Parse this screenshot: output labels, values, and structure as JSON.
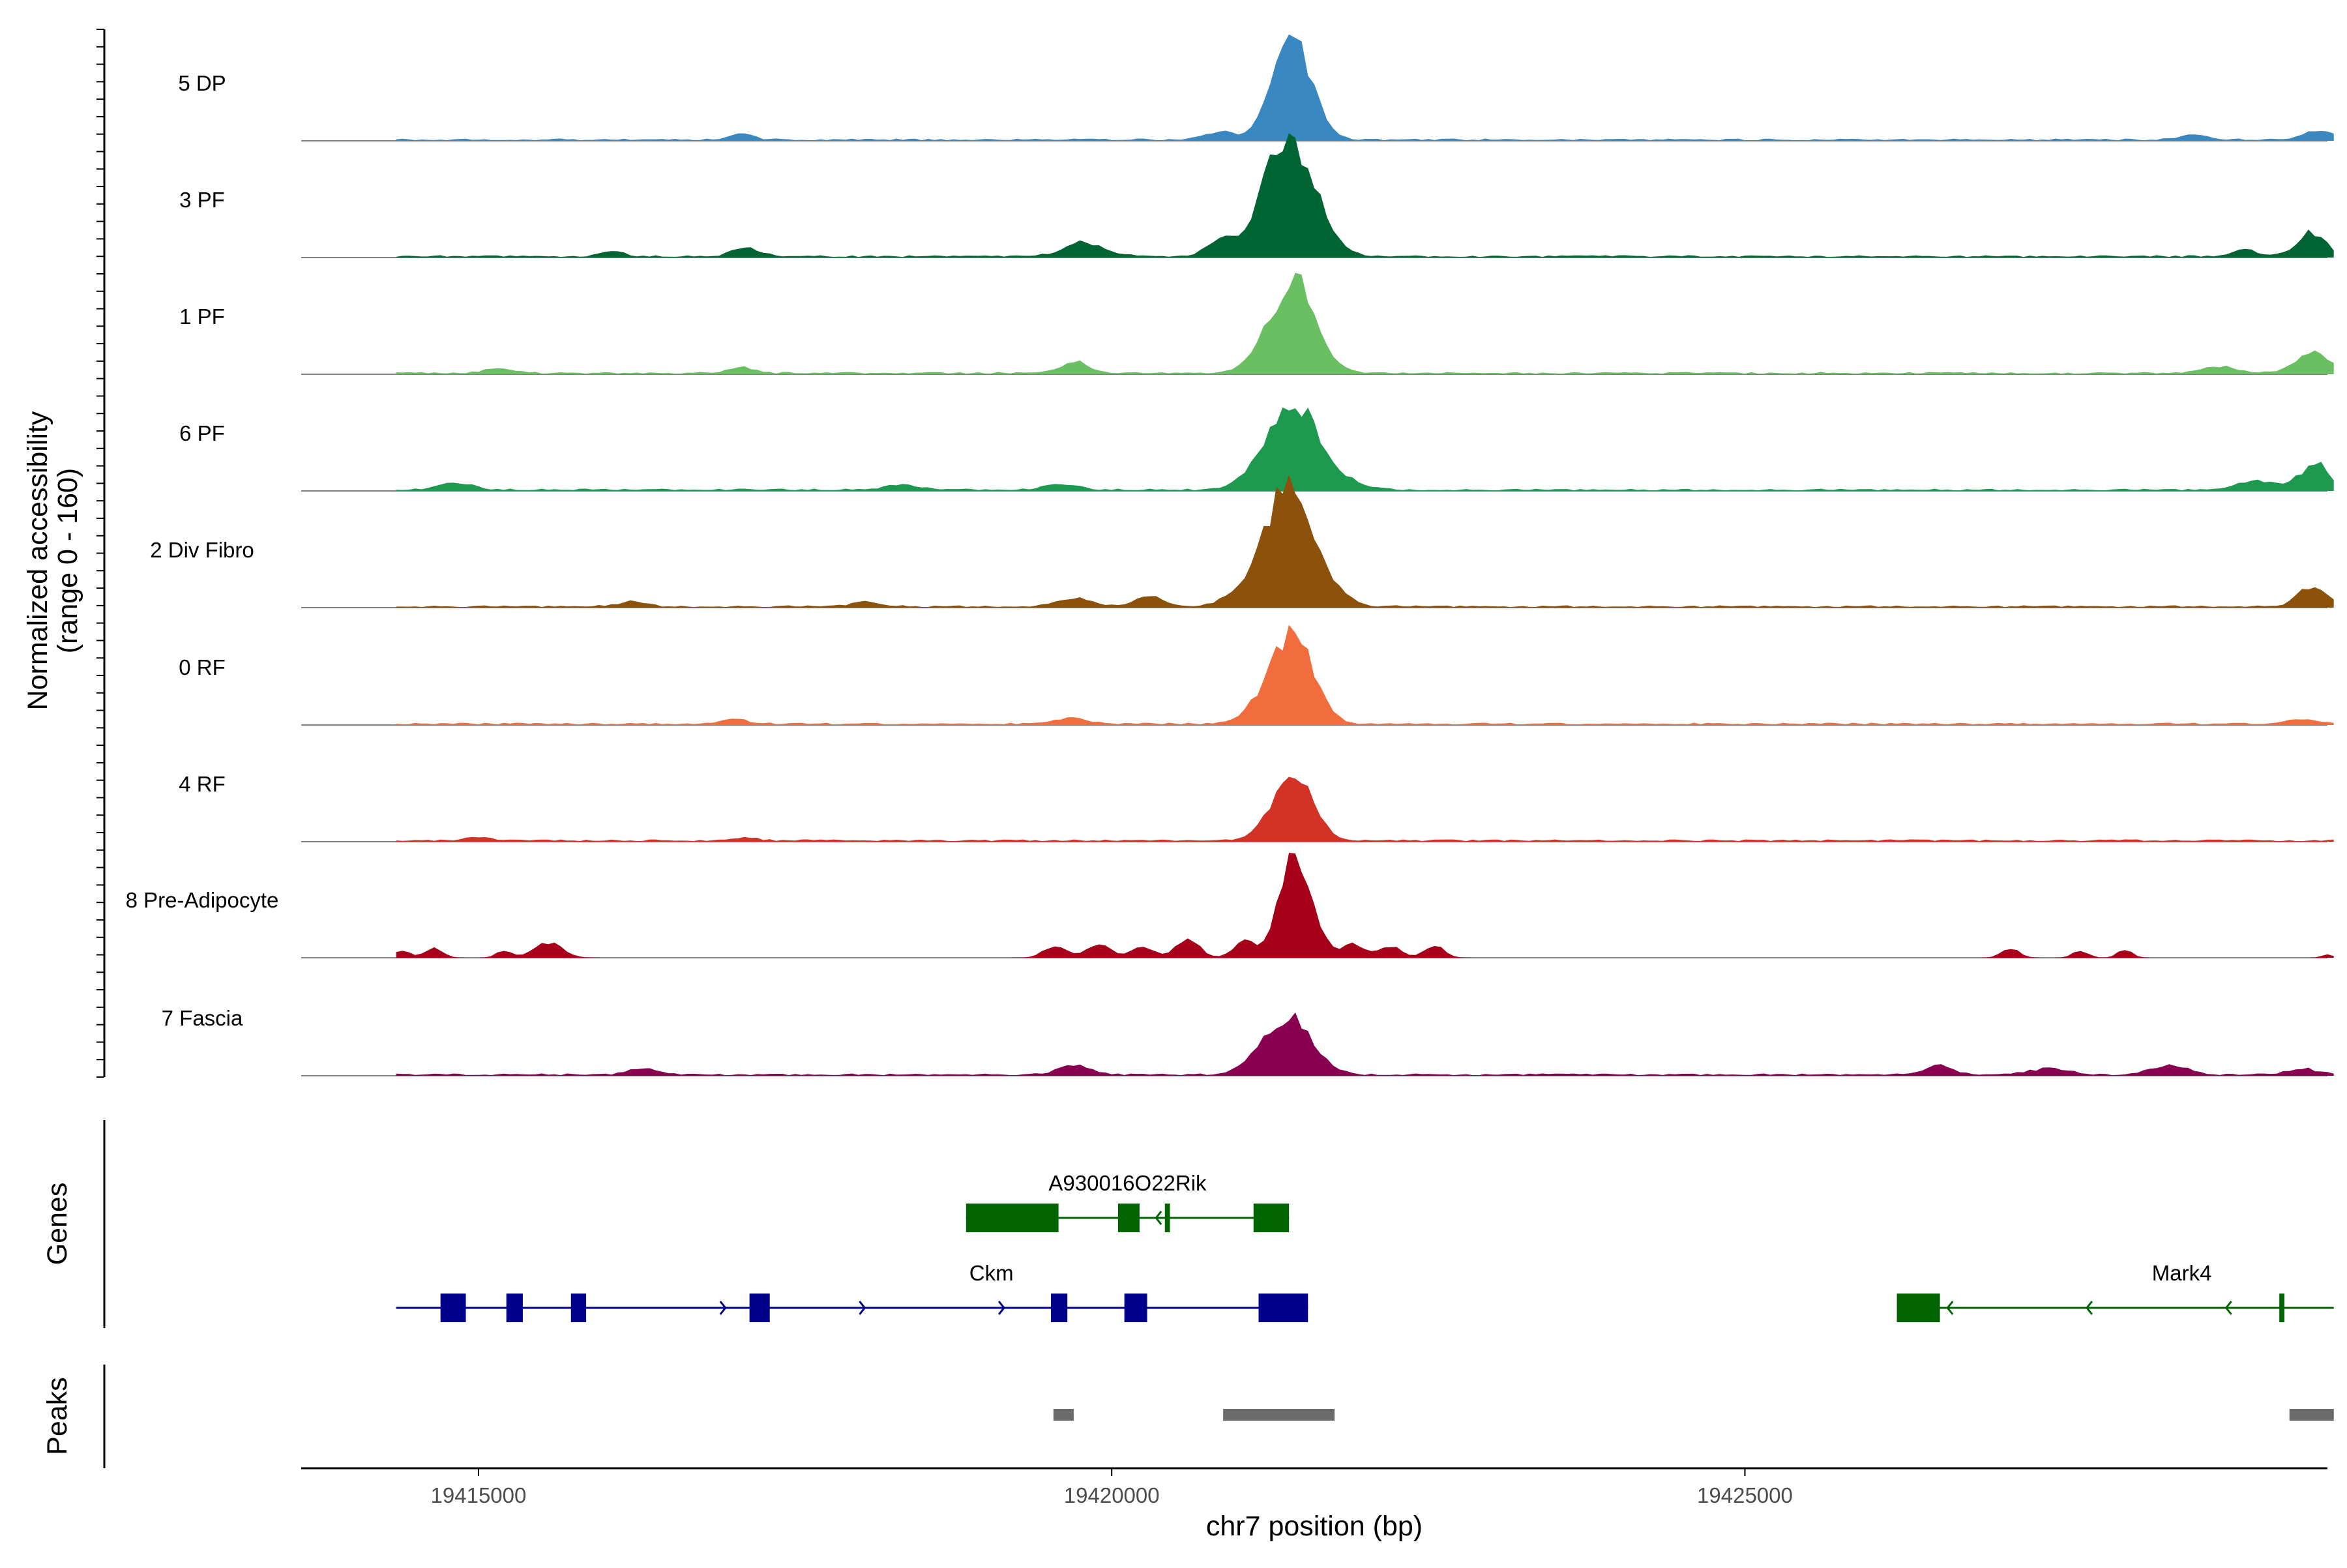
{
  "chart_data": {
    "type": "area",
    "title": "",
    "ylabel_line1": "Normalized accessibility",
    "ylabel_line2": "(range 0 - 160)",
    "ylim": [
      0,
      160
    ],
    "xlabel": "chr7 position (bp)",
    "xlim": [
      19413600,
      19429600
    ],
    "x_ticks": [
      19415000,
      19420000,
      19425000
    ],
    "x_tick_labels": [
      "19415000",
      "19420000",
      "19425000"
    ],
    "track_labels": {
      "genes": "Genes",
      "peaks": "Peaks"
    },
    "bin_width": 50,
    "background_level": 2,
    "series": [
      {
        "name": "5 DP",
        "color": "#3a88c2",
        "region_start": 19414350,
        "region_end": 19429650,
        "peaks": [
          {
            "center": 19421430,
            "height": 98,
            "width": 150
          },
          {
            "center": 19421340,
            "height": 22,
            "width": 120
          },
          {
            "center": 19420850,
            "height": 8,
            "width": 110
          },
          {
            "center": 19417080,
            "height": 7,
            "width": 90
          },
          {
            "center": 19429530,
            "height": 10,
            "width": 110
          },
          {
            "center": 19428550,
            "height": 5,
            "width": 100
          }
        ]
      },
      {
        "name": "3 PF",
        "color": "#006532",
        "region_start": 19414350,
        "region_end": 19429650,
        "peaks": [
          {
            "center": 19421470,
            "height": 92,
            "width": 180
          },
          {
            "center": 19421270,
            "height": 55,
            "width": 140
          },
          {
            "center": 19420870,
            "height": 20,
            "width": 110
          },
          {
            "center": 19419780,
            "height": 14,
            "width": 160
          },
          {
            "center": 19417120,
            "height": 9,
            "width": 110
          },
          {
            "center": 19429470,
            "height": 25,
            "width": 110
          },
          {
            "center": 19428950,
            "height": 7,
            "width": 100
          },
          {
            "center": 19416050,
            "height": 5,
            "width": 90
          }
        ]
      },
      {
        "name": "1 PF",
        "color": "#6abf62",
        "region_start": 19414350,
        "region_end": 19429650,
        "peaks": [
          {
            "center": 19421450,
            "height": 94,
            "width": 170
          },
          {
            "center": 19421180,
            "height": 14,
            "width": 120
          },
          {
            "center": 19419720,
            "height": 11,
            "width": 110
          },
          {
            "center": 19429480,
            "height": 22,
            "width": 130
          },
          {
            "center": 19428750,
            "height": 7,
            "width": 130
          },
          {
            "center": 19417080,
            "height": 6,
            "width": 100
          },
          {
            "center": 19415150,
            "height": 6,
            "width": 100
          }
        ]
      },
      {
        "name": "6 PF",
        "color": "#1e9a50",
        "region_start": 19414350,
        "region_end": 19429650,
        "peaks": [
          {
            "center": 19421450,
            "height": 90,
            "width": 180
          },
          {
            "center": 19421150,
            "height": 16,
            "width": 140
          },
          {
            "center": 19421850,
            "height": 8,
            "width": 140
          },
          {
            "center": 19429500,
            "height": 28,
            "width": 110
          },
          {
            "center": 19429050,
            "height": 10,
            "width": 150
          },
          {
            "center": 19414820,
            "height": 7,
            "width": 130
          },
          {
            "center": 19419600,
            "height": 6,
            "width": 120
          },
          {
            "center": 19418350,
            "height": 5,
            "width": 140
          }
        ]
      },
      {
        "name": "2 Div Fibro",
        "color": "#8c510a",
        "region_start": 19414350,
        "region_end": 19429650,
        "peaks": [
          {
            "center": 19421380,
            "height": 124,
            "width": 170
          },
          {
            "center": 19421680,
            "height": 22,
            "width": 150
          },
          {
            "center": 19421000,
            "height": 12,
            "width": 130
          },
          {
            "center": 19419700,
            "height": 9,
            "width": 130
          },
          {
            "center": 19420300,
            "height": 10,
            "width": 110
          },
          {
            "center": 19429480,
            "height": 22,
            "width": 110
          },
          {
            "center": 19416200,
            "height": 5,
            "width": 110
          },
          {
            "center": 19418050,
            "height": 5,
            "width": 110
          }
        ]
      },
      {
        "name": "0 RF",
        "color": "#f26d3d",
        "region_start": 19414350,
        "region_end": 19429650,
        "peaks": [
          {
            "center": 19421430,
            "height": 90,
            "width": 160
          },
          {
            "center": 19421150,
            "height": 12,
            "width": 130
          },
          {
            "center": 19419680,
            "height": 7,
            "width": 120
          },
          {
            "center": 19417020,
            "height": 5,
            "width": 100
          },
          {
            "center": 19429400,
            "height": 5,
            "width": 120
          }
        ]
      },
      {
        "name": "4 RF",
        "color": "#d33226",
        "region_start": 19414350,
        "region_end": 19429650,
        "peaks": [
          {
            "center": 19421450,
            "height": 72,
            "width": 140
          },
          {
            "center": 19421200,
            "height": 10,
            "width": 100
          },
          {
            "center": 19417100,
            "height": 3,
            "width": 100
          },
          {
            "center": 19415000,
            "height": 3,
            "width": 100
          }
        ]
      },
      {
        "name": "8 Pre-Adipocyte",
        "color": "#a6001a",
        "region_start": 19414350,
        "region_end": 19429650,
        "noise_level": 0,
        "peaks": [
          {
            "center": 19421420,
            "height": 95,
            "width": 110
          },
          {
            "center": 19421600,
            "height": 30,
            "width": 90
          },
          {
            "center": 19421050,
            "height": 18,
            "width": 90
          },
          {
            "center": 19420600,
            "height": 20,
            "width": 90
          },
          {
            "center": 19420250,
            "height": 12,
            "width": 90
          },
          {
            "center": 19419900,
            "height": 16,
            "width": 90
          },
          {
            "center": 19419550,
            "height": 12,
            "width": 90
          },
          {
            "center": 19421900,
            "height": 14,
            "width": 90
          },
          {
            "center": 19422200,
            "height": 12,
            "width": 90
          },
          {
            "center": 19422550,
            "height": 12,
            "width": 80
          },
          {
            "center": 19415550,
            "height": 16,
            "width": 110
          },
          {
            "center": 19414650,
            "height": 10,
            "width": 70
          },
          {
            "center": 19415200,
            "height": 8,
            "width": 60
          },
          {
            "center": 19414400,
            "height": 8,
            "width": 60
          },
          {
            "center": 19427100,
            "height": 10,
            "width": 70
          },
          {
            "center": 19427650,
            "height": 8,
            "width": 60
          },
          {
            "center": 19428000,
            "height": 8,
            "width": 60
          },
          {
            "center": 19429600,
            "height": 4,
            "width": 40
          }
        ]
      },
      {
        "name": "7 Fascia",
        "color": "#8a0051",
        "region_start": 19414350,
        "region_end": 19429650,
        "peaks": [
          {
            "center": 19421420,
            "height": 60,
            "width": 170
          },
          {
            "center": 19421150,
            "height": 12,
            "width": 130
          },
          {
            "center": 19419700,
            "height": 10,
            "width": 120
          },
          {
            "center": 19428350,
            "height": 10,
            "width": 140
          },
          {
            "center": 19426530,
            "height": 9,
            "width": 110
          },
          {
            "center": 19427400,
            "height": 6,
            "width": 150
          },
          {
            "center": 19429400,
            "height": 7,
            "width": 110
          },
          {
            "center": 19416300,
            "height": 6,
            "width": 110
          }
        ]
      }
    ],
    "genes": [
      {
        "name": "A930016O22Rik",
        "color": "#006400",
        "row": 0,
        "strand": "-",
        "start": 19418850,
        "end": 19421400,
        "exons": [
          [
            19418850,
            19419580
          ],
          [
            19420050,
            19420220
          ],
          [
            19420420,
            19420460
          ],
          [
            19421120,
            19421400
          ]
        ]
      },
      {
        "name": "Ckm",
        "color": "#00008b",
        "row": 1,
        "strand": "+",
        "start": 19414350,
        "end": 19421550,
        "exons": [
          [
            19414700,
            19414900
          ],
          [
            19415220,
            19415350
          ],
          [
            19415730,
            19415850
          ],
          [
            19417140,
            19417300
          ],
          [
            19419520,
            19419650
          ],
          [
            19420100,
            19420280
          ],
          [
            19421160,
            19421550
          ]
        ]
      },
      {
        "name": "Mark4",
        "color": "#006400",
        "row": 1,
        "strand": "-",
        "start": 19426200,
        "end": 19429650,
        "exons": [
          [
            19426200,
            19426540
          ],
          [
            19429220,
            19429260
          ]
        ]
      }
    ],
    "peaks_track": [
      {
        "start": 19419540,
        "end": 19419700
      },
      {
        "start": 19420880,
        "end": 19421760
      },
      {
        "start": 19429300,
        "end": 19429650
      }
    ]
  }
}
